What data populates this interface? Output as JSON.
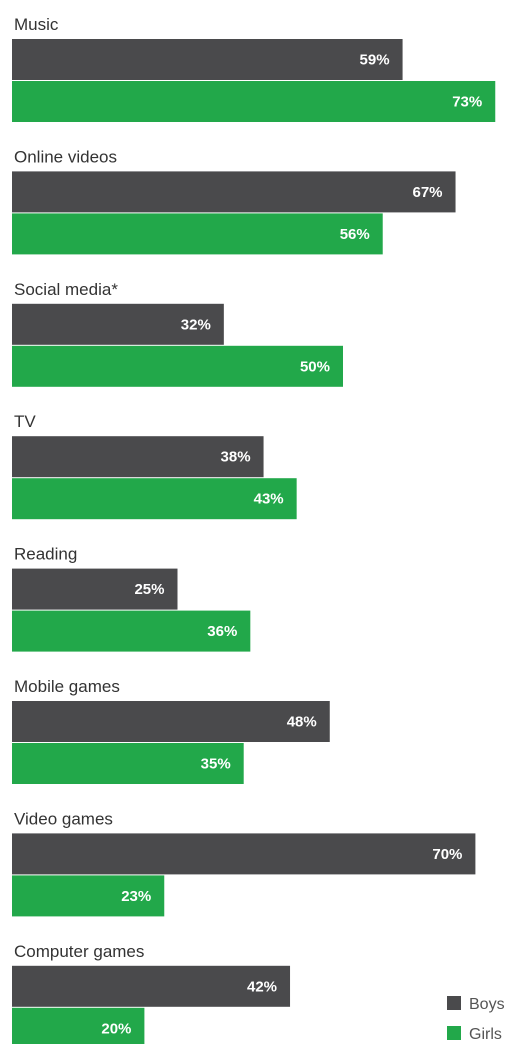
{
  "chart_data": {
    "type": "bar",
    "orientation": "horizontal",
    "categories": [
      "Music",
      "Online videos",
      "Social media*",
      "TV",
      "Reading",
      "Mobile games",
      "Video games",
      "Computer games"
    ],
    "series": [
      {
        "name": "Boys",
        "values": [
          59,
          67,
          32,
          38,
          25,
          48,
          70,
          42
        ],
        "color": "#4a4a4c"
      },
      {
        "name": "Girls",
        "values": [
          73,
          56,
          50,
          43,
          36,
          35,
          23,
          20
        ],
        "color": "#22a84a"
      }
    ],
    "value_suffix": "%",
    "xlim": [
      0,
      100
    ],
    "grid": false,
    "legend_position": "bottom-right"
  }
}
